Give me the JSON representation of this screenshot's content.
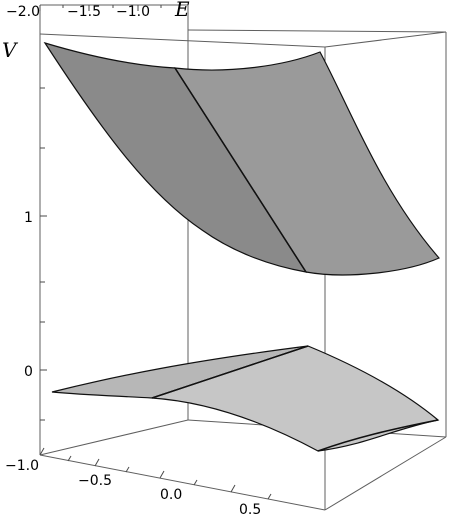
{
  "chart_data": {
    "type": "surface-3d",
    "axis_labels": {
      "E": "E",
      "V": "V"
    },
    "ticks": {
      "E": [
        "−2.0",
        "−1.5",
        "−1.0"
      ],
      "V": [
        "1",
        "0"
      ],
      "front": [
        "−1.0",
        "−0.5",
        "0.0",
        "0.5"
      ]
    },
    "surfaces": [
      {
        "name": "",
        "approx_v_range": [
          0.65,
          2.05
        ],
        "shape": "upper curved sheet"
      },
      {
        "name": "",
        "approx_v_range": [
          -0.15,
          0.2
        ],
        "shape": "lower curved sheet"
      }
    ],
    "grid": false,
    "legend": "none"
  }
}
